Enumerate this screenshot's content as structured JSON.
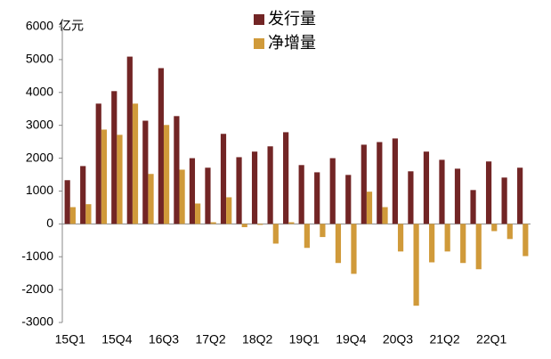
{
  "chart_data": {
    "type": "bar",
    "y_axis_label": "亿元",
    "categories": [
      "15Q1",
      null,
      null,
      "15Q4",
      null,
      null,
      "16Q3",
      null,
      null,
      "17Q2",
      null,
      null,
      "18Q2",
      null,
      null,
      "19Q1",
      null,
      null,
      "19Q4",
      null,
      null,
      "20Q3",
      null,
      null,
      "21Q2",
      null,
      null,
      "22Q1",
      null,
      null
    ],
    "series": [
      {
        "name": "发行量",
        "color": "#722525",
        "values": [
          1330,
          1760,
          3660,
          4040,
          5090,
          3140,
          4740,
          3280,
          2000,
          1710,
          2740,
          2030,
          2200,
          2360,
          2790,
          1790,
          1570,
          2000,
          1490,
          2410,
          2490,
          2600,
          1600,
          2200,
          1950,
          1680,
          1030,
          1900,
          1410,
          1710
        ]
      },
      {
        "name": "净增量",
        "color": "#d09a3a",
        "values": [
          510,
          600,
          2870,
          2710,
          3660,
          1520,
          3010,
          1650,
          620,
          50,
          810,
          -100,
          -30,
          -600,
          50,
          -730,
          -400,
          -1190,
          -1520,
          980,
          510,
          -840,
          -2490,
          -1170,
          -840,
          -1190,
          -1380,
          -220,
          -460,
          -980
        ]
      }
    ],
    "ylim": [
      -3000,
      6000
    ],
    "yticks": [
      -3000,
      -2000,
      -1000,
      0,
      1000,
      2000,
      3000,
      4000,
      5000,
      6000
    ],
    "grid": false,
    "legend": "top"
  }
}
